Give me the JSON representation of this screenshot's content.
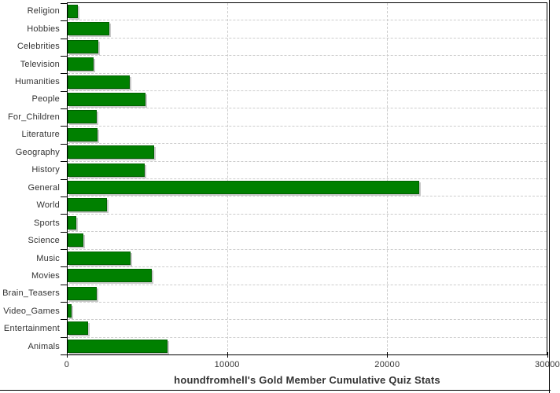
{
  "chart_data": {
    "type": "bar",
    "orientation": "horizontal",
    "title": "houndfromhell's Gold Member Cumulative Quiz Stats",
    "categories": [
      "Religion",
      "Hobbies",
      "Celebrities",
      "Television",
      "Humanities",
      "People",
      "For_Children",
      "Literature",
      "Geography",
      "History",
      "General",
      "World",
      "Sports",
      "Science",
      "Music",
      "Movies",
      "Brain_Teasers",
      "Video_Games",
      "Entertainment",
      "Animals"
    ],
    "values": [
      650,
      2600,
      1900,
      1650,
      3900,
      4880,
      1800,
      1850,
      5400,
      4850,
      22000,
      2450,
      550,
      1000,
      3950,
      5250,
      1800,
      250,
      1300,
      6250
    ],
    "xlabel": "",
    "ylabel": "",
    "xlim": [
      0,
      30000
    ],
    "x_ticks": [
      0,
      10000,
      20000,
      30000
    ],
    "x_tick_labels": [
      "0",
      "10000",
      "20000",
      "30000"
    ],
    "grid": "dashed horizontal per category + vertical at 10000 and 20000",
    "legend": "none"
  },
  "colors": {
    "bar_fill": "#008000",
    "bar_border": "#006100",
    "bar_shadow": "#c9c9c9",
    "gridline": "#cccccc",
    "axis": "#000000",
    "text": "#333333",
    "background": "#ffffff"
  }
}
